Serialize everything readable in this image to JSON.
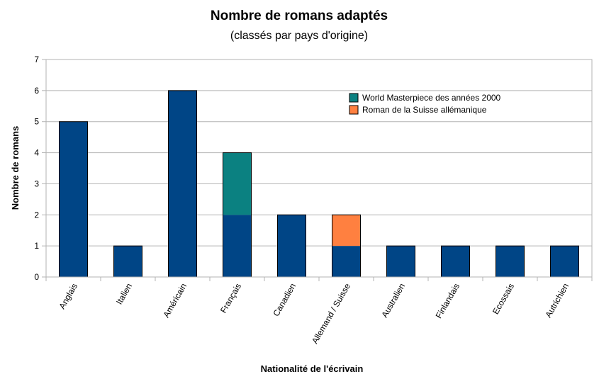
{
  "chart_data": {
    "type": "bar",
    "stacked": true,
    "title": "Nombre de romans adaptés",
    "subtitle": "(classés par pays d'origine)",
    "xlabel": "Nationalité de l'écrivain",
    "ylabel": "Nombre de romans",
    "ylim": [
      0,
      7
    ],
    "yticks": [
      0,
      1,
      2,
      3,
      4,
      5,
      6,
      7
    ],
    "grid": true,
    "legend_position": "top-right",
    "categories": [
      "Anglais",
      "Italien",
      "Américain",
      "Français",
      "Canadien",
      "Allemand / Suisse",
      "Australien",
      "Finlandais",
      "Ecossais",
      "Autrichien"
    ],
    "series": [
      {
        "values": [
          5,
          1,
          6,
          2,
          2,
          1,
          1,
          1,
          1,
          1
        ],
        "color": "#004586"
      },
      {
        "name": "World Masterpiece des années 2000",
        "values": [
          0,
          0,
          0,
          2,
          0,
          0,
          0,
          0,
          0,
          0
        ],
        "color": "#0b8181"
      },
      {
        "name": "Roman de la Suisse allémanique",
        "values": [
          0,
          0,
          0,
          0,
          0,
          1,
          0,
          0,
          0,
          0
        ],
        "color": "#ff8040"
      }
    ]
  }
}
